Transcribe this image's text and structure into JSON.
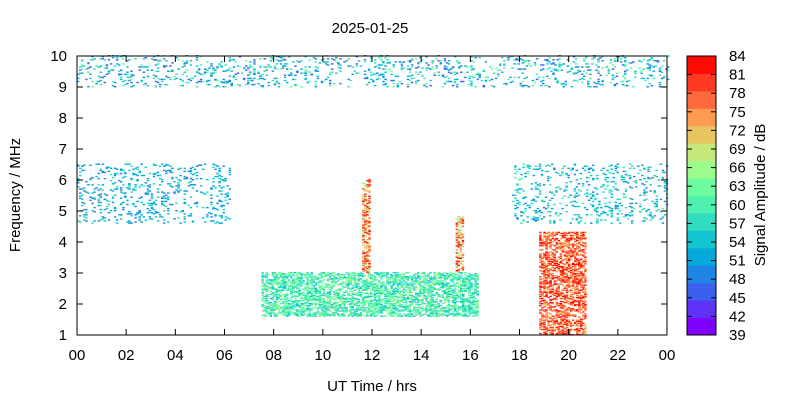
{
  "chart_data": {
    "type": "heatmap",
    "title": "2025-01-25",
    "xlabel": "UT Time / hrs",
    "ylabel": "Frequency / MHz",
    "colorbar_label": "Signal Amplitude / dB",
    "xlim": [
      0,
      24
    ],
    "ylim": [
      1,
      10
    ],
    "clim": [
      39,
      84
    ],
    "x_tick_labels": [
      "00",
      "02",
      "04",
      "06",
      "08",
      "10",
      "12",
      "14",
      "16",
      "18",
      "20",
      "22",
      "00"
    ],
    "y_tick_labels": [
      "1",
      "2",
      "3",
      "4",
      "5",
      "6",
      "7",
      "8",
      "9",
      "10"
    ],
    "colorbar_tick_labels": [
      "39",
      "42",
      "45",
      "48",
      "51",
      "54",
      "57",
      "60",
      "63",
      "66",
      "69",
      "72",
      "75",
      "78",
      "81",
      "84"
    ],
    "colormap": [
      "#7f00ff",
      "#5e32f7",
      "#3c60ee",
      "#1f84e5",
      "#04a8da",
      "#13c5cf",
      "#30ddc1",
      "#4ff0b0",
      "#6cfc9f",
      "#9cfc8c",
      "#c6e87a",
      "#e9c562",
      "#fe9b50",
      "#ff6a3c",
      "#ff3a22",
      "#ff0a05"
    ],
    "regions": [
      {
        "name": "daytime-echo-band",
        "x": [
          7.5,
          16.3
        ],
        "y": [
          1.6,
          3.0
        ],
        "amplitude": [
          54,
          66
        ]
      },
      {
        "name": "spike-11.7",
        "x": [
          11.6,
          11.9
        ],
        "y": [
          3.0,
          6.0
        ],
        "amplitude": [
          66,
          84
        ]
      },
      {
        "name": "spike-15.5",
        "x": [
          15.4,
          15.7
        ],
        "y": [
          3.0,
          4.8
        ],
        "amplitude": [
          66,
          84
        ]
      },
      {
        "name": "evening-burst",
        "x": [
          18.8,
          20.7
        ],
        "y": [
          1.0,
          4.3
        ],
        "amplitude": [
          72,
          84
        ]
      },
      {
        "name": "night-band-left",
        "x": [
          0.0,
          6.2
        ],
        "y": [
          4.6,
          6.5
        ],
        "amplitude": [
          48,
          57
        ]
      },
      {
        "name": "night-band-right",
        "x": [
          17.7,
          24.0
        ],
        "y": [
          4.6,
          6.5
        ],
        "amplitude": [
          48,
          60
        ]
      },
      {
        "name": "top-band",
        "x": [
          0.0,
          24.0
        ],
        "y": [
          9.0,
          10.0
        ],
        "amplitude": [
          45,
          63
        ]
      }
    ],
    "grid": false,
    "colorbar_position": "right"
  }
}
